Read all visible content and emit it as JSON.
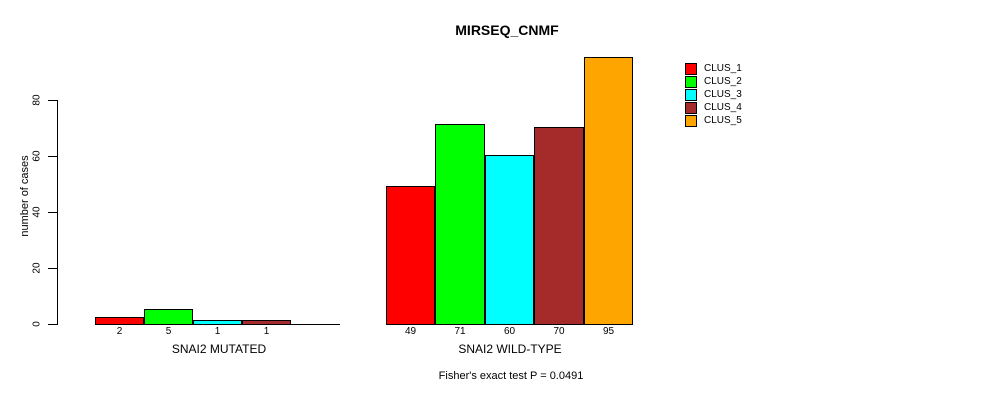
{
  "title": "MIRSEQ_CNMF",
  "chart_data": {
    "type": "bar",
    "title": "MIRSEQ_CNMF",
    "ylabel": "number of cases",
    "xlabel": "",
    "ylim": [
      0,
      95
    ],
    "y_ticks": [
      0,
      20,
      40,
      60,
      80
    ],
    "grid": false,
    "legend": {
      "position": "right",
      "entries": [
        {
          "label": "CLUS_1",
          "color": "#FF0000"
        },
        {
          "label": "CLUS_2",
          "color": "#00FF00"
        },
        {
          "label": "CLUS_3",
          "color": "#00FFFF"
        },
        {
          "label": "CLUS_4",
          "color": "#A52A2A"
        },
        {
          "label": "CLUS_5",
          "color": "#FFA500"
        }
      ]
    },
    "categories": [
      "CLUS_1",
      "CLUS_2",
      "CLUS_3",
      "CLUS_4",
      "CLUS_5"
    ],
    "groups": [
      {
        "label": "SNAI2 MUTATED",
        "values": [
          2,
          5,
          1,
          1,
          0
        ],
        "bar_labels": [
          "2",
          "5",
          "1",
          "1",
          ""
        ]
      },
      {
        "label": "SNAI2 WILD-TYPE",
        "values": [
          49,
          71,
          60,
          70,
          95
        ],
        "bar_labels": [
          "49",
          "71",
          "60",
          "70",
          "95"
        ]
      }
    ],
    "annotation": "Fisher's exact test P = 0.0491"
  },
  "colors": {
    "background": "#FFFFFF",
    "axis": "#000000",
    "text": "#000000"
  }
}
